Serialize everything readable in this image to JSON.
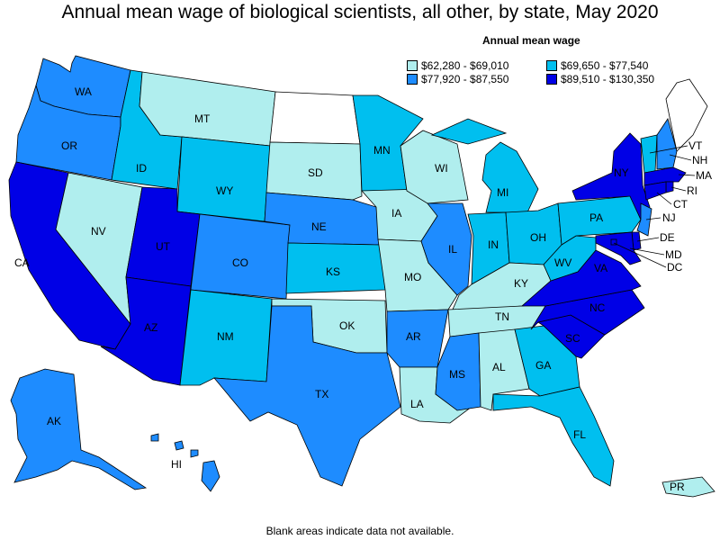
{
  "title": "Annual mean wage of biological scientists, all other, by state, May 2020",
  "legend": {
    "title": "Annual mean wage",
    "items": [
      {
        "label": "$62,280 - $69,010",
        "color": "#b0eeee"
      },
      {
        "label": "$69,650 - $77,540",
        "color": "#00bfef"
      },
      {
        "label": "$77,920 - $87,550",
        "color": "#1e8cff"
      },
      {
        "label": "$89,510 - $130,350",
        "color": "#0000e6"
      }
    ]
  },
  "footnote": "Blank areas indicate data not available.",
  "colors": {
    "blank": "#ffffff",
    "border": "#000000"
  },
  "states": {
    "WA": {
      "label": "WA",
      "tier": 2
    },
    "OR": {
      "label": "OR",
      "tier": 2
    },
    "CA": {
      "label": "CA",
      "tier": 3
    },
    "NV": {
      "label": "NV",
      "tier": 0
    },
    "ID": {
      "label": "ID",
      "tier": 1
    },
    "MT": {
      "label": "MT",
      "tier": 0
    },
    "WY": {
      "label": "WY",
      "tier": 1
    },
    "UT": {
      "label": "UT",
      "tier": 3
    },
    "AZ": {
      "label": "AZ",
      "tier": 3
    },
    "CO": {
      "label": "CO",
      "tier": 2
    },
    "NM": {
      "label": "NM",
      "tier": 1
    },
    "ND": {
      "label": "",
      "tier": null
    },
    "SD": {
      "label": "SD",
      "tier": 0
    },
    "NE": {
      "label": "NE",
      "tier": 2
    },
    "KS": {
      "label": "KS",
      "tier": 1
    },
    "OK": {
      "label": "OK",
      "tier": 0
    },
    "TX": {
      "label": "TX",
      "tier": 2
    },
    "MN": {
      "label": "MN",
      "tier": 1
    },
    "IA": {
      "label": "IA",
      "tier": 0
    },
    "MO": {
      "label": "MO",
      "tier": 0
    },
    "AR": {
      "label": "AR",
      "tier": 2
    },
    "LA": {
      "label": "LA",
      "tier": 0
    },
    "WI": {
      "label": "WI",
      "tier": 0
    },
    "IL": {
      "label": "IL",
      "tier": 2
    },
    "MI": {
      "label": "MI",
      "tier": 1
    },
    "IN": {
      "label": "IN",
      "tier": 1
    },
    "OH": {
      "label": "OH",
      "tier": 1
    },
    "KY": {
      "label": "KY",
      "tier": 0
    },
    "TN": {
      "label": "TN",
      "tier": 0
    },
    "MS": {
      "label": "MS",
      "tier": 2
    },
    "AL": {
      "label": "AL",
      "tier": 0
    },
    "GA": {
      "label": "GA",
      "tier": 1
    },
    "FL": {
      "label": "FL",
      "tier": 1
    },
    "SC": {
      "label": "SC",
      "tier": 3
    },
    "NC": {
      "label": "NC",
      "tier": 3
    },
    "VA": {
      "label": "VA",
      "tier": 3
    },
    "WV": {
      "label": "WV",
      "tier": 1
    },
    "PA": {
      "label": "PA",
      "tier": 1
    },
    "NY": {
      "label": "NY",
      "tier": 3
    },
    "ME": {
      "label": "",
      "tier": null
    },
    "VT": {
      "label": "VT",
      "tier": 1
    },
    "NH": {
      "label": "NH",
      "tier": 2
    },
    "MA": {
      "label": "MA",
      "tier": 3
    },
    "RI": {
      "label": "RI",
      "tier": 3
    },
    "CT": {
      "label": "CT",
      "tier": 3
    },
    "NJ": {
      "label": "NJ",
      "tier": 2
    },
    "DE": {
      "label": "DE",
      "tier": 3
    },
    "MD": {
      "label": "MD",
      "tier": 3
    },
    "DC": {
      "label": "DC",
      "tier": 3
    },
    "AK": {
      "label": "AK",
      "tier": 2
    },
    "HI": {
      "label": "HI",
      "tier": 2
    },
    "PR": {
      "label": "PR",
      "tier": 0
    }
  }
}
